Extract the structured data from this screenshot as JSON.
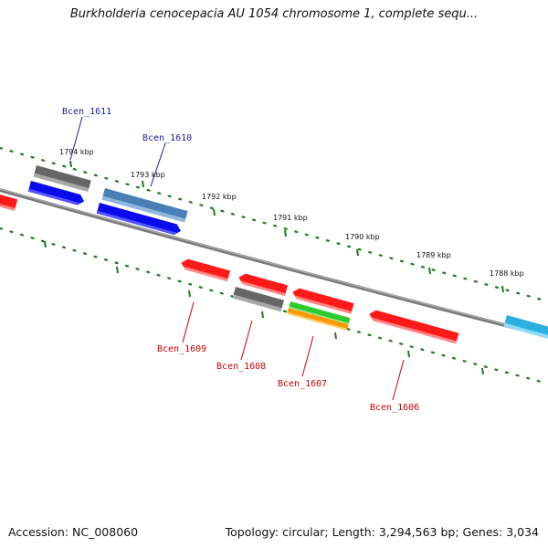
{
  "title": "Burkholderia cenocepacia AU 1054 chromosome 1, complete sequ...",
  "footer": {
    "accession": "Accession: NC_008060",
    "summary": "Topology: circular; Length: 3,294,563 bp; Genes: 3,034"
  },
  "colors": {
    "backbone": "#808080",
    "ticks": "#1e7a1e",
    "label_forward": "#1a1aa0",
    "label_reverse": "#cc0000",
    "gene_red": "#ff1a1a",
    "gene_blue": "#0a0aee",
    "gene_gray": "#666666",
    "gene_steel": "#4a7fb5",
    "gene_green": "#2ecc2e",
    "gene_orange": "#ff9900",
    "gene_cyan": "#2ab0e0"
  },
  "scale": {
    "unit": "kbp",
    "labels": [
      "1794 kbp",
      "1793 kbp",
      "1792 kbp",
      "1791 kbp",
      "1790 kbp",
      "1789 kbp",
      "1788 kbp"
    ]
  },
  "genes": [
    {
      "label": "Bcen_1611",
      "strand": "forward"
    },
    {
      "label": "Bcen_1610",
      "strand": "forward"
    },
    {
      "label": "Bcen_1609",
      "strand": "reverse"
    },
    {
      "label": "Bcen_1608",
      "strand": "reverse"
    },
    {
      "label": "Bcen_1607",
      "strand": "reverse"
    },
    {
      "label": "Bcen_1606",
      "strand": "reverse"
    }
  ]
}
